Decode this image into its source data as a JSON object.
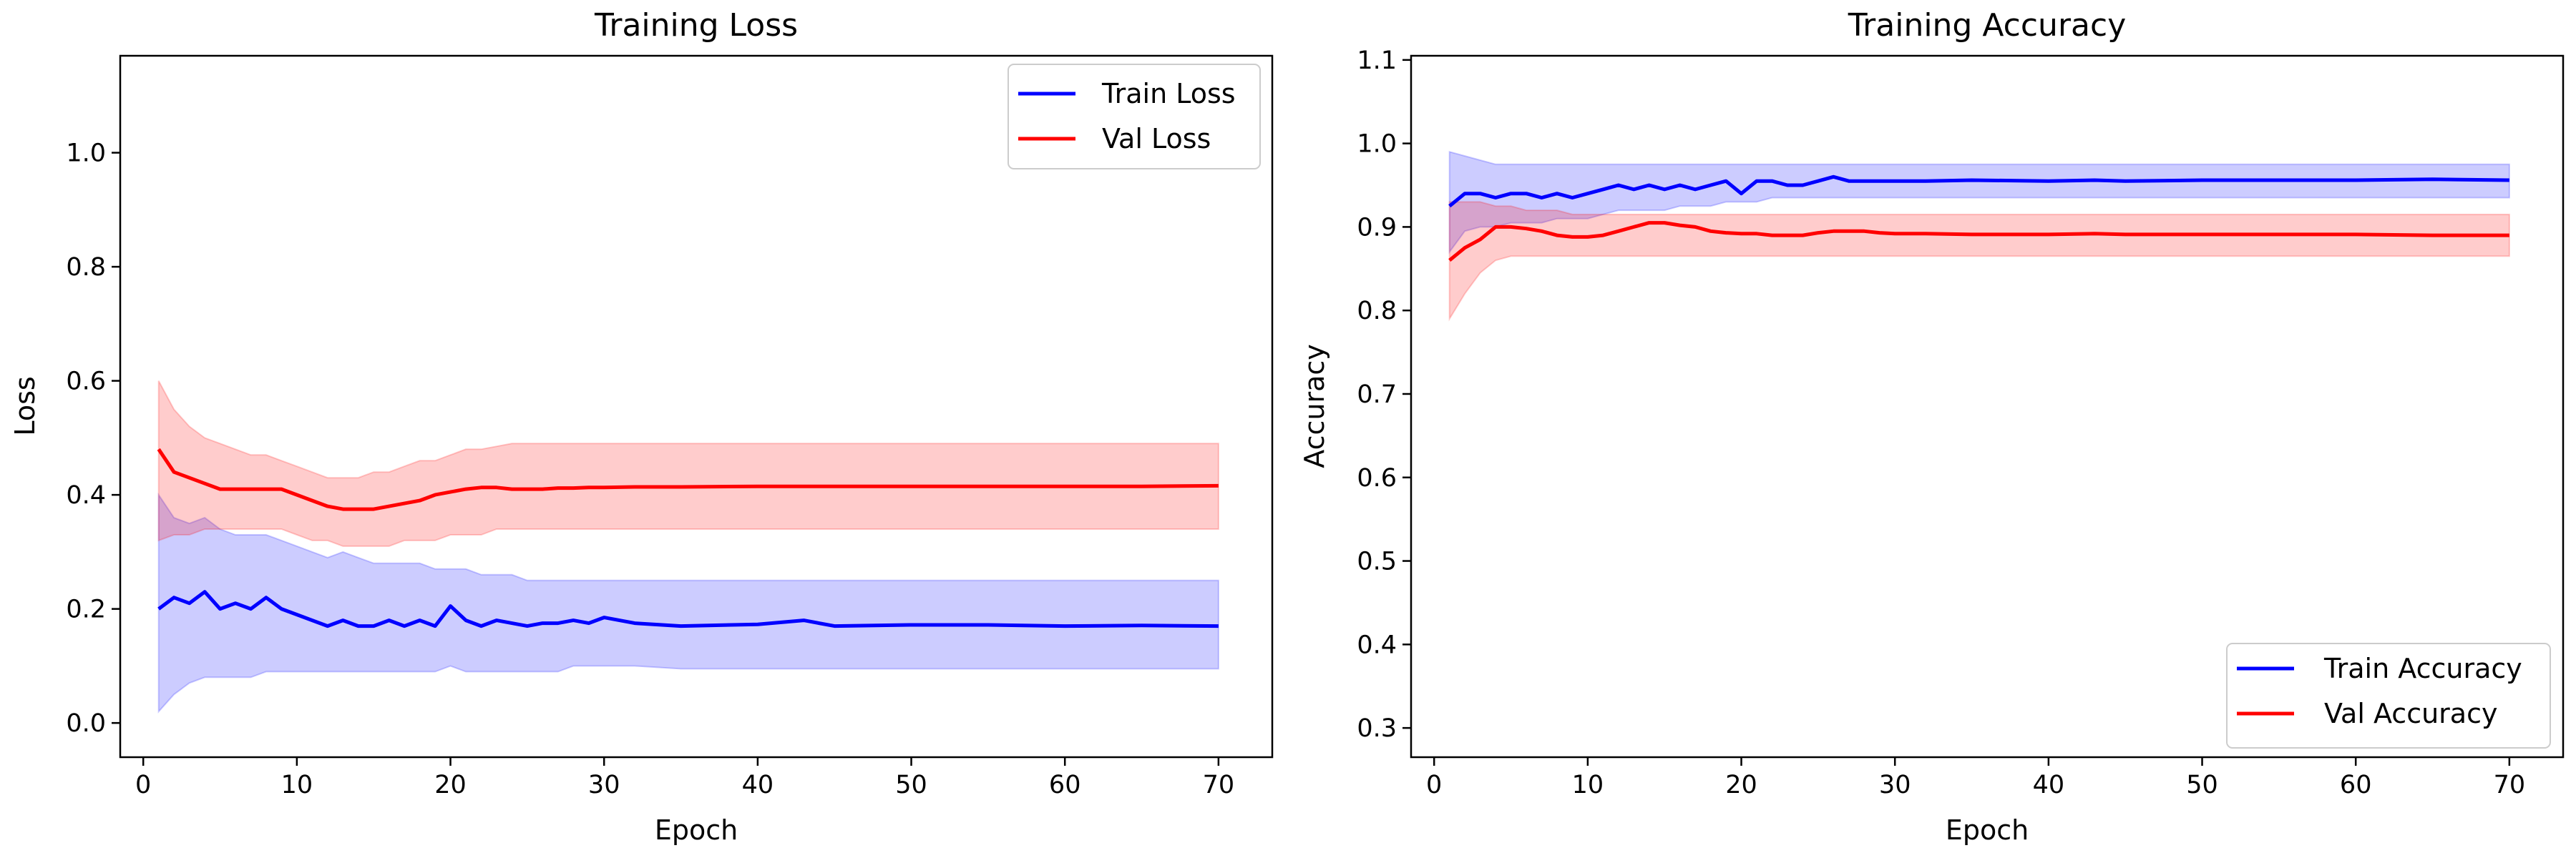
{
  "chart_data": [
    {
      "type": "line",
      "title": "Training Loss",
      "xlabel": "Epoch",
      "ylabel": "Loss",
      "xlim": [
        -1.5,
        73.5
      ],
      "ylim": [
        -0.06,
        1.17
      ],
      "xticks": [
        0,
        10,
        20,
        30,
        40,
        50,
        60,
        70
      ],
      "xtick_labels": [
        "0",
        "10",
        "20",
        "30",
        "40",
        "50",
        "60",
        "70"
      ],
      "yticks": [
        0.0,
        0.2,
        0.4,
        0.6,
        0.8,
        1.0
      ],
      "ytick_labels": [
        "0.0",
        "0.2",
        "0.4",
        "0.6",
        "0.8",
        "1.0"
      ],
      "grid": false,
      "legend_position": "top-right",
      "series": [
        {
          "name": "Train Loss",
          "color": "#0000ff",
          "x": [
            1,
            2,
            3,
            4,
            5,
            6,
            7,
            8,
            9,
            10,
            11,
            12,
            13,
            14,
            15,
            16,
            17,
            18,
            19,
            20,
            21,
            22,
            23,
            24,
            25,
            26,
            27,
            28,
            29,
            30,
            32,
            35,
            40,
            43,
            45,
            50,
            55,
            60,
            65,
            70
          ],
          "mean": [
            0.2,
            0.22,
            0.21,
            0.23,
            0.2,
            0.21,
            0.2,
            0.22,
            0.2,
            0.19,
            0.18,
            0.17,
            0.18,
            0.17,
            0.17,
            0.18,
            0.17,
            0.18,
            0.17,
            0.205,
            0.18,
            0.17,
            0.18,
            0.175,
            0.17,
            0.175,
            0.175,
            0.18,
            0.175,
            0.185,
            0.175,
            0.17,
            0.173,
            0.18,
            0.17,
            0.172,
            0.172,
            0.17,
            0.171,
            0.17
          ],
          "upper": [
            0.4,
            0.36,
            0.35,
            0.36,
            0.34,
            0.33,
            0.33,
            0.33,
            0.32,
            0.31,
            0.3,
            0.29,
            0.3,
            0.29,
            0.28,
            0.28,
            0.28,
            0.28,
            0.27,
            0.27,
            0.27,
            0.26,
            0.26,
            0.26,
            0.25,
            0.25,
            0.25,
            0.25,
            0.25,
            0.25,
            0.25,
            0.25,
            0.25,
            0.25,
            0.25,
            0.25,
            0.25,
            0.25,
            0.25,
            0.25
          ],
          "lower": [
            0.02,
            0.05,
            0.07,
            0.08,
            0.08,
            0.08,
            0.08,
            0.09,
            0.09,
            0.09,
            0.09,
            0.09,
            0.09,
            0.09,
            0.09,
            0.09,
            0.09,
            0.09,
            0.09,
            0.1,
            0.09,
            0.09,
            0.09,
            0.09,
            0.09,
            0.09,
            0.09,
            0.1,
            0.1,
            0.1,
            0.1,
            0.095,
            0.095,
            0.095,
            0.095,
            0.095,
            0.095,
            0.095,
            0.095,
            0.095
          ]
        },
        {
          "name": "Val Loss",
          "color": "#ff0000",
          "x": [
            1,
            2,
            3,
            4,
            5,
            6,
            7,
            8,
            9,
            10,
            11,
            12,
            13,
            14,
            15,
            16,
            17,
            18,
            19,
            20,
            21,
            22,
            23,
            24,
            25,
            26,
            27,
            28,
            29,
            30,
            32,
            35,
            40,
            43,
            45,
            50,
            55,
            60,
            65,
            70
          ],
          "mean": [
            0.48,
            0.44,
            0.43,
            0.42,
            0.41,
            0.41,
            0.41,
            0.41,
            0.41,
            0.4,
            0.39,
            0.38,
            0.375,
            0.375,
            0.375,
            0.38,
            0.385,
            0.39,
            0.4,
            0.405,
            0.41,
            0.413,
            0.413,
            0.41,
            0.41,
            0.41,
            0.412,
            0.412,
            0.413,
            0.413,
            0.414,
            0.414,
            0.415,
            0.415,
            0.415,
            0.415,
            0.415,
            0.415,
            0.415,
            0.416
          ],
          "upper": [
            0.6,
            0.55,
            0.52,
            0.5,
            0.49,
            0.48,
            0.47,
            0.47,
            0.46,
            0.45,
            0.44,
            0.43,
            0.43,
            0.43,
            0.44,
            0.44,
            0.45,
            0.46,
            0.46,
            0.47,
            0.48,
            0.48,
            0.485,
            0.49,
            0.49,
            0.49,
            0.49,
            0.49,
            0.49,
            0.49,
            0.49,
            0.49,
            0.49,
            0.49,
            0.49,
            0.49,
            0.49,
            0.49,
            0.49,
            0.49
          ],
          "lower": [
            0.32,
            0.33,
            0.33,
            0.34,
            0.34,
            0.34,
            0.34,
            0.34,
            0.34,
            0.33,
            0.32,
            0.32,
            0.31,
            0.31,
            0.31,
            0.31,
            0.32,
            0.32,
            0.32,
            0.33,
            0.33,
            0.33,
            0.34,
            0.34,
            0.34,
            0.34,
            0.34,
            0.34,
            0.34,
            0.34,
            0.34,
            0.34,
            0.34,
            0.34,
            0.34,
            0.34,
            0.34,
            0.34,
            0.34,
            0.34
          ]
        }
      ]
    },
    {
      "type": "line",
      "title": "Training Accuracy",
      "xlabel": "Epoch",
      "ylabel": "Accuracy",
      "xlim": [
        -1.5,
        73.5
      ],
      "ylim": [
        0.265,
        1.105
      ],
      "xticks": [
        0,
        10,
        20,
        30,
        40,
        50,
        60,
        70
      ],
      "xtick_labels": [
        "0",
        "10",
        "20",
        "30",
        "40",
        "50",
        "60",
        "70"
      ],
      "yticks": [
        0.3,
        0.4,
        0.5,
        0.6,
        0.7,
        0.8,
        0.9,
        1.0,
        1.1
      ],
      "ytick_labels": [
        "0.3",
        "0.4",
        "0.5",
        "0.6",
        "0.7",
        "0.8",
        "0.9",
        "1.0",
        "1.1"
      ],
      "grid": false,
      "legend_position": "bottom-right",
      "series": [
        {
          "name": "Train Accuracy",
          "color": "#0000ff",
          "x": [
            1,
            2,
            3,
            4,
            5,
            6,
            7,
            8,
            9,
            10,
            11,
            12,
            13,
            14,
            15,
            16,
            17,
            18,
            19,
            20,
            21,
            22,
            23,
            24,
            25,
            26,
            27,
            28,
            29,
            30,
            32,
            35,
            40,
            43,
            45,
            50,
            55,
            60,
            65,
            70
          ],
          "mean": [
            0.925,
            0.94,
            0.94,
            0.935,
            0.94,
            0.94,
            0.935,
            0.94,
            0.935,
            0.94,
            0.945,
            0.95,
            0.945,
            0.95,
            0.945,
            0.95,
            0.945,
            0.95,
            0.955,
            0.94,
            0.955,
            0.955,
            0.95,
            0.95,
            0.955,
            0.96,
            0.955,
            0.955,
            0.955,
            0.955,
            0.955,
            0.956,
            0.955,
            0.956,
            0.955,
            0.956,
            0.956,
            0.956,
            0.957,
            0.956
          ],
          "upper": [
            0.99,
            0.985,
            0.98,
            0.975,
            0.975,
            0.975,
            0.975,
            0.975,
            0.975,
            0.975,
            0.975,
            0.975,
            0.975,
            0.975,
            0.975,
            0.975,
            0.975,
            0.975,
            0.975,
            0.975,
            0.975,
            0.975,
            0.975,
            0.975,
            0.975,
            0.975,
            0.975,
            0.975,
            0.975,
            0.975,
            0.975,
            0.975,
            0.975,
            0.975,
            0.975,
            0.975,
            0.975,
            0.975,
            0.975,
            0.975
          ],
          "lower": [
            0.87,
            0.895,
            0.9,
            0.9,
            0.905,
            0.905,
            0.905,
            0.91,
            0.91,
            0.91,
            0.915,
            0.92,
            0.92,
            0.92,
            0.92,
            0.925,
            0.925,
            0.925,
            0.93,
            0.93,
            0.93,
            0.935,
            0.935,
            0.935,
            0.935,
            0.935,
            0.935,
            0.935,
            0.935,
            0.935,
            0.935,
            0.935,
            0.935,
            0.935,
            0.935,
            0.935,
            0.935,
            0.935,
            0.935,
            0.935
          ]
        },
        {
          "name": "Val Accuracy",
          "color": "#ff0000",
          "x": [
            1,
            2,
            3,
            4,
            5,
            6,
            7,
            8,
            9,
            10,
            11,
            12,
            13,
            14,
            15,
            16,
            17,
            18,
            19,
            20,
            21,
            22,
            23,
            24,
            25,
            26,
            27,
            28,
            29,
            30,
            32,
            35,
            40,
            43,
            45,
            50,
            55,
            60,
            65,
            70
          ],
          "mean": [
            0.86,
            0.875,
            0.885,
            0.9,
            0.9,
            0.898,
            0.895,
            0.89,
            0.888,
            0.888,
            0.89,
            0.895,
            0.9,
            0.905,
            0.905,
            0.902,
            0.9,
            0.895,
            0.893,
            0.892,
            0.892,
            0.89,
            0.89,
            0.89,
            0.893,
            0.895,
            0.895,
            0.895,
            0.893,
            0.892,
            0.892,
            0.891,
            0.891,
            0.892,
            0.891,
            0.891,
            0.891,
            0.891,
            0.89,
            0.89
          ],
          "upper": [
            0.93,
            0.93,
            0.93,
            0.925,
            0.925,
            0.92,
            0.92,
            0.92,
            0.915,
            0.915,
            0.915,
            0.915,
            0.915,
            0.915,
            0.915,
            0.915,
            0.915,
            0.915,
            0.915,
            0.915,
            0.915,
            0.915,
            0.915,
            0.915,
            0.915,
            0.915,
            0.915,
            0.915,
            0.915,
            0.915,
            0.915,
            0.915,
            0.915,
            0.915,
            0.915,
            0.915,
            0.915,
            0.915,
            0.915,
            0.915
          ],
          "lower": [
            0.79,
            0.82,
            0.845,
            0.86,
            0.865,
            0.865,
            0.865,
            0.865,
            0.865,
            0.865,
            0.865,
            0.865,
            0.865,
            0.865,
            0.865,
            0.865,
            0.865,
            0.865,
            0.865,
            0.865,
            0.865,
            0.865,
            0.865,
            0.865,
            0.865,
            0.865,
            0.865,
            0.865,
            0.865,
            0.865,
            0.865,
            0.865,
            0.865,
            0.865,
            0.865,
            0.865,
            0.865,
            0.865,
            0.865,
            0.865
          ]
        }
      ]
    }
  ]
}
